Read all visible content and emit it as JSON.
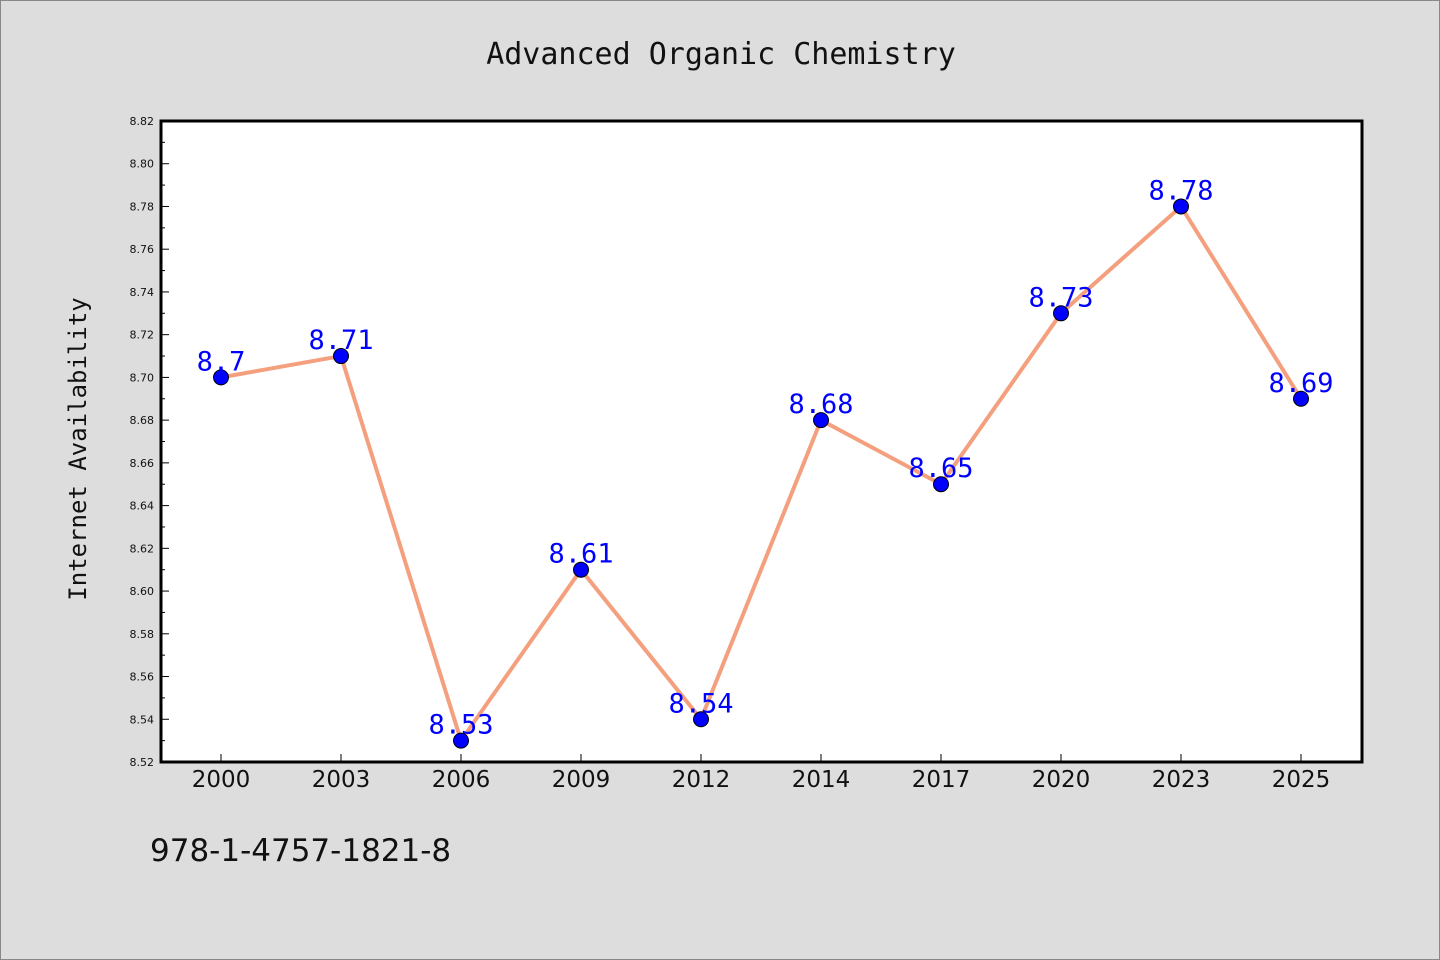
{
  "chart_data": {
    "type": "line",
    "title": "Advanced Organic Chemistry",
    "xlabel": "",
    "ylabel": "Internet Availability",
    "categories": [
      "2000",
      "2003",
      "2006",
      "2009",
      "2012",
      "2014",
      "2017",
      "2020",
      "2023",
      "2025"
    ],
    "series": [
      {
        "values": [
          8.7,
          8.71,
          8.53,
          8.61,
          8.54,
          8.68,
          8.65,
          8.73,
          8.78,
          8.69
        ],
        "data_labels": [
          "8.7",
          "8.71",
          "8.53",
          "8.61",
          "8.54",
          "8.68",
          "8.65",
          "8.73",
          "8.78",
          "8.69"
        ]
      }
    ],
    "ylim": [
      8.52,
      8.82
    ],
    "yticks": [
      "8.52",
      "8.54",
      "8.56",
      "8.58",
      "8.60",
      "8.62",
      "8.64",
      "8.66",
      "8.68",
      "8.70",
      "8.72",
      "8.74",
      "8.76",
      "8.78",
      "8.80",
      "8.82"
    ],
    "grid": false,
    "legend": "none",
    "colors": {
      "line": "#f4a07e",
      "marker": "#0000ff",
      "marker_edge": "#000000",
      "data_label": "#0000ff",
      "background": "#dddddd",
      "plot_background": "#ffffff"
    }
  },
  "footer": {
    "isbn": "978-1-4757-1821-8"
  }
}
